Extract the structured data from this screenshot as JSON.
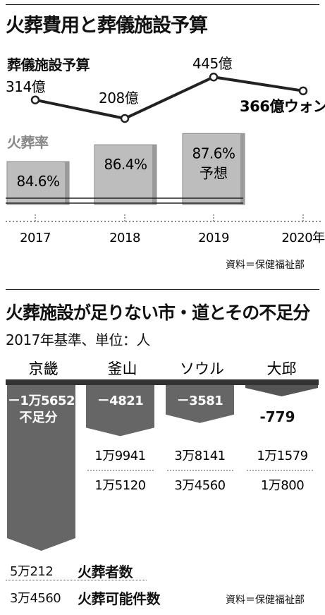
{
  "panel1": {
    "title": "火葬費用と葬儀施設予算",
    "budget_label": "葬儀施設予算",
    "rate_label": "火葬率",
    "source": "資料＝保健福祉部"
  },
  "panel2": {
    "title": "火葬施設が足りない市・道とその不足分",
    "subtitle": "2017年基準、単位：人",
    "source": "資料＝保健福祉部",
    "legend_cremations": "火葬者数",
    "legend_capacity": "火葬可能件数",
    "legend_cremations_value": "5万212",
    "legend_capacity_value": "3万4560"
  },
  "chart_data": [
    {
      "type": "line",
      "series": [
        {
          "name": "葬儀施設予算",
          "unit": "億ウォン",
          "x": [
            "2017",
            "2018",
            "2019",
            "2020年"
          ],
          "values": [
            314,
            208,
            445,
            366
          ],
          "labels": [
            "314億",
            "208億",
            "445億",
            "366億ウォン"
          ]
        }
      ]
    },
    {
      "type": "bar",
      "title": "火葬率",
      "categories": [
        "2017",
        "2018",
        "2019",
        "2020年"
      ],
      "values": [
        84.6,
        86.4,
        87.6,
        null
      ],
      "labels": [
        "84.6%",
        "86.4%",
        "87.6%",
        ""
      ],
      "notes": [
        "",
        "",
        "予想",
        ""
      ]
    },
    {
      "type": "bar",
      "title": "火葬施設が足りない市・道とその不足分",
      "categories": [
        "京畿",
        "釜山",
        "ソウル",
        "大邱"
      ],
      "series": [
        {
          "name": "不足分",
          "values": [
            -15652,
            -4821,
            -3581,
            -779
          ],
          "labels": [
            "－1万5652",
            "－4821",
            "－3581",
            "-779"
          ]
        },
        {
          "name": "火葬者数",
          "values": [
            50212,
            19941,
            38141,
            11579
          ],
          "labels": [
            "5万212",
            "1万9941",
            "3万8141",
            "1万1579"
          ]
        },
        {
          "name": "火葬可能件数",
          "values": [
            34560,
            15120,
            34560,
            10800
          ],
          "labels": [
            "3万4560",
            "1万5120",
            "3万4560",
            "1万800"
          ]
        }
      ],
      "deficit_note": "不足分"
    }
  ]
}
